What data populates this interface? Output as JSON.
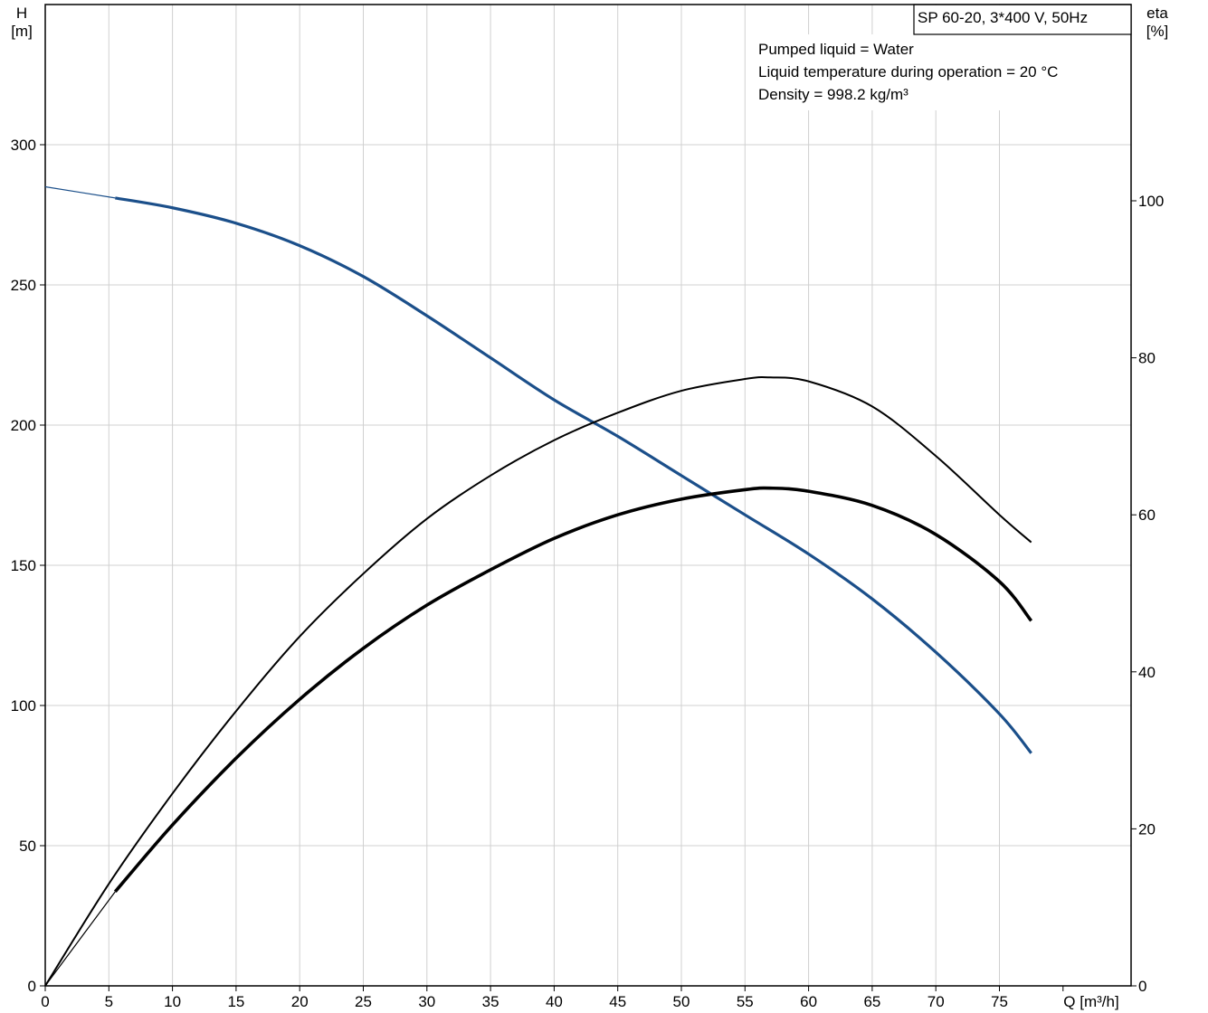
{
  "chart_data": {
    "type": "line",
    "title": "SP 60-20, 3*400 V, 50Hz",
    "annotations": [
      "Pumped liquid = Water",
      "Liquid temperature during operation = 20 °C",
      "Density = 998.2 kg/m³"
    ],
    "x_axis": {
      "label": "Q [m³/h]",
      "range": [
        0,
        78
      ],
      "ticks": [
        0,
        5,
        10,
        15,
        20,
        25,
        30,
        35,
        40,
        45,
        50,
        55,
        60,
        65,
        70,
        75
      ]
    },
    "y_axis_left": {
      "label_line1": "H",
      "label_line2": "[m]",
      "range": [
        0,
        350
      ],
      "ticks": [
        0,
        50,
        100,
        150,
        200,
        250,
        300
      ]
    },
    "y_axis_right": {
      "label_line1": "eta",
      "label_line2": "[%]",
      "range": [
        0,
        125
      ],
      "ticks": [
        0,
        20,
        40,
        60,
        80,
        100
      ]
    },
    "grid": true,
    "series": [
      {
        "axis": "left",
        "color": "#1b4f8a",
        "points": [
          [
            5.5,
            281
          ],
          [
            10,
            277.5
          ],
          [
            15,
            272
          ],
          [
            20,
            264
          ],
          [
            25,
            253
          ],
          [
            30,
            239
          ],
          [
            35,
            224
          ],
          [
            40,
            209
          ],
          [
            45,
            196
          ],
          [
            50,
            182
          ],
          [
            55,
            168
          ],
          [
            60,
            154
          ],
          [
            65,
            138
          ],
          [
            70,
            119
          ],
          [
            75,
            97
          ],
          [
            77.5,
            83
          ]
        ],
        "extrapolation": [
          [
            0,
            285
          ],
          [
            5.5,
            281
          ]
        ]
      },
      {
        "axis": "right",
        "color": "#000000",
        "points": [
          [
            5.5,
            12
          ],
          [
            10,
            20.5
          ],
          [
            15,
            29
          ],
          [
            20,
            36.5
          ],
          [
            25,
            43
          ],
          [
            30,
            48.5
          ],
          [
            35,
            53
          ],
          [
            40,
            57
          ],
          [
            45,
            60
          ],
          [
            50,
            62
          ],
          [
            55,
            63.2
          ],
          [
            57,
            63.4
          ],
          [
            60,
            63
          ],
          [
            65,
            61.2
          ],
          [
            70,
            57.5
          ],
          [
            75,
            51.5
          ],
          [
            77.5,
            46.5
          ]
        ],
        "extrapolation": [
          [
            0,
            0
          ],
          [
            5.5,
            12
          ]
        ]
      },
      {
        "axis": "right",
        "color": "#000000",
        "points": [
          [
            0,
            0
          ],
          [
            5,
            13
          ],
          [
            10,
            24.5
          ],
          [
            15,
            35
          ],
          [
            20,
            44.5
          ],
          [
            25,
            52.5
          ],
          [
            30,
            59.5
          ],
          [
            35,
            65
          ],
          [
            40,
            69.5
          ],
          [
            45,
            73
          ],
          [
            50,
            75.8
          ],
          [
            55,
            77.3
          ],
          [
            57,
            77.5
          ],
          [
            60,
            77
          ],
          [
            65,
            73.8
          ],
          [
            70,
            67.5
          ],
          [
            75,
            60
          ],
          [
            77.5,
            56.5
          ]
        ]
      }
    ]
  }
}
